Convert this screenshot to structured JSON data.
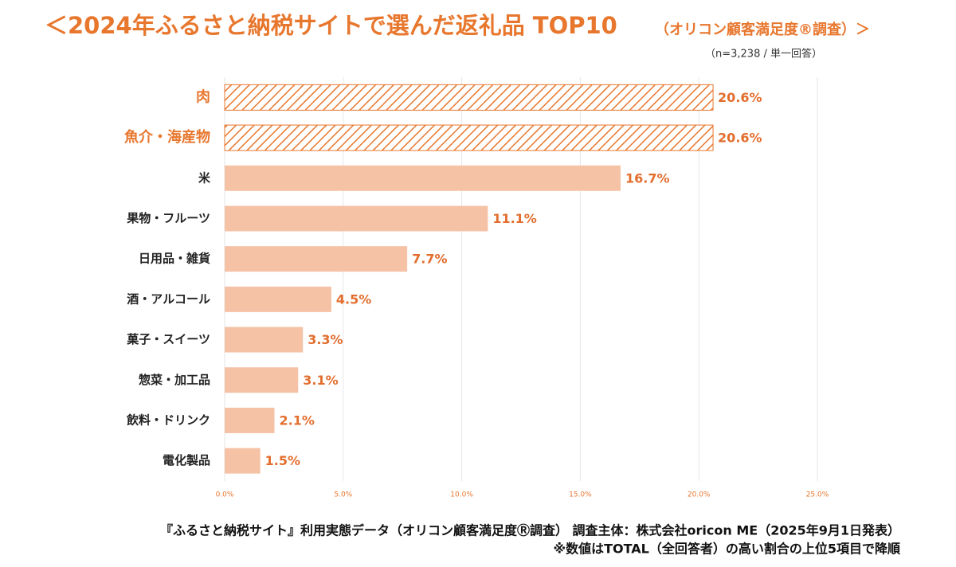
{
  "chart_data": {
    "type": "hbar",
    "title": "＜2024年ふるさと納税サイトで選んだ返礼品 TOP10",
    "title_note": "（オリコン顧客満足度®調査）＞",
    "subtitle": "（n=3,238 / 単一回答）",
    "categories": [
      "肉",
      "魚介・海産物",
      "米",
      "果物・フルーツ",
      "日用品・雑貨",
      "酒・アルコール",
      "菓子・スイーツ",
      "惣菜・加工品",
      "飲料・ドリンク",
      "電化製品"
    ],
    "values": [
      20.6,
      20.6,
      16.7,
      11.1,
      7.7,
      4.5,
      3.3,
      3.1,
      2.1,
      1.5
    ],
    "value_labels": [
      "20.6%",
      "20.6%",
      "16.7%",
      "11.1%",
      "7.7%",
      "4.5%",
      "3.3%",
      "3.1%",
      "2.1%",
      "1.5%"
    ],
    "highlight": [
      true,
      true,
      false,
      false,
      false,
      false,
      false,
      false,
      false,
      false
    ],
    "color": "#f6c2a6",
    "highlight_color": "#e8772e",
    "xlim": [
      0,
      25
    ],
    "xticks": [
      {
        "value": 0,
        "label": "0.0%"
      },
      {
        "value": 5,
        "label": "5.0%"
      },
      {
        "value": 10,
        "label": "10.0%"
      },
      {
        "value": 15,
        "label": "15.0%"
      },
      {
        "value": 20,
        "label": "20.0%"
      },
      {
        "value": 25,
        "label": "25.0%"
      }
    ],
    "grid": true,
    "footnotes": [
      "『ふるさと納税サイト』利用実態データ（オリコン顧客満足度Ⓡ調査） 調査主体：株式会社oricon ME（2025年9月1日発表）",
      "※数値はTOTAL（全回答者）の高い割合の上位5項目で降順"
    ]
  }
}
